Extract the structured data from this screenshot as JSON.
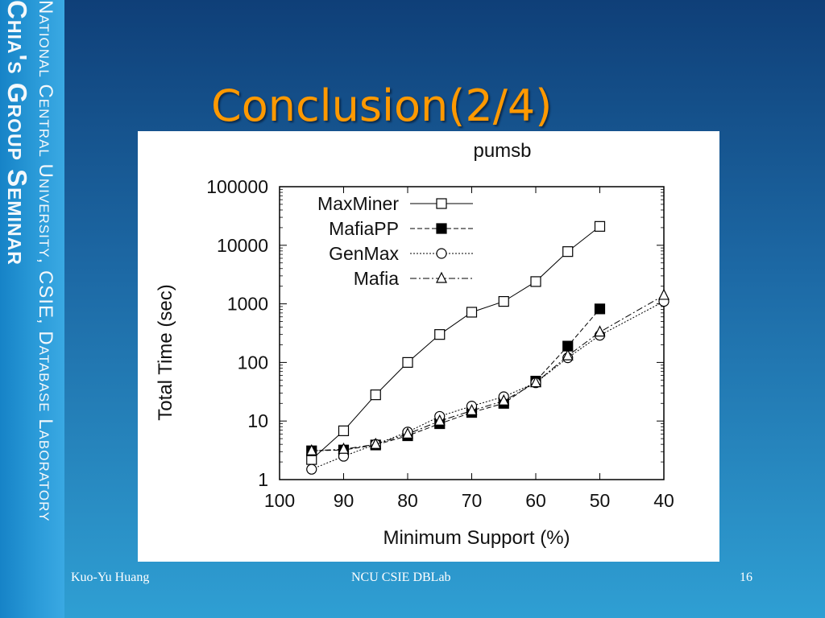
{
  "sidebar": {
    "line1": "National Central University, CSIE, Database Laboratory",
    "line2": "Chia's Group Seminar"
  },
  "slide": {
    "title": "Conclusion(2/4)"
  },
  "footer": {
    "author": "Kuo-Yu Huang",
    "center": "NCU CSIE DBLab",
    "page": "16"
  },
  "chart_data": {
    "type": "line",
    "title": "pumsb",
    "xlabel": "Minimum Support (%)",
    "ylabel": "Total Time (sec)",
    "y_scale": "log",
    "x_reversed": true,
    "xlim": [
      100,
      40
    ],
    "ylim": [
      1,
      100000
    ],
    "x_ticks": [
      "100",
      "90",
      "80",
      "70",
      "60",
      "50",
      "40"
    ],
    "y_ticks": [
      "1",
      "10",
      "100",
      "1000",
      "10000",
      "100000"
    ],
    "legend_position": "top-left",
    "grid": false,
    "series": [
      {
        "name": "MaxMiner",
        "marker": "open-square",
        "line": "solid",
        "x": [
          95,
          90,
          85,
          80,
          75,
          70,
          65,
          60,
          55,
          50
        ],
        "y": [
          2.2,
          6.8,
          28,
          100,
          300,
          720,
          1100,
          2400,
          7800,
          21000
        ]
      },
      {
        "name": "MafiaPP",
        "marker": "filled-square",
        "line": "dashed",
        "x": [
          95,
          90,
          85,
          80,
          75,
          70,
          65,
          60,
          55,
          50
        ],
        "y": [
          3.1,
          3.2,
          3.9,
          5.6,
          9,
          14,
          20,
          48,
          190,
          820
        ]
      },
      {
        "name": "GenMax",
        "marker": "open-circle",
        "line": "dotted",
        "x": [
          95,
          90,
          85,
          80,
          75,
          70,
          65,
          60,
          55,
          50,
          40
        ],
        "y": [
          1.5,
          2.5,
          4,
          6.5,
          12,
          18,
          26,
          45,
          120,
          290,
          1100
        ]
      },
      {
        "name": "Mafia",
        "marker": "open-triangle",
        "line": "dash-dot",
        "x": [
          95,
          90,
          85,
          80,
          75,
          70,
          65,
          60,
          55,
          50,
          40
        ],
        "y": [
          3.1,
          3.3,
          4,
          6,
          10,
          15,
          22,
          45,
          130,
          330,
          1400
        ]
      }
    ]
  }
}
